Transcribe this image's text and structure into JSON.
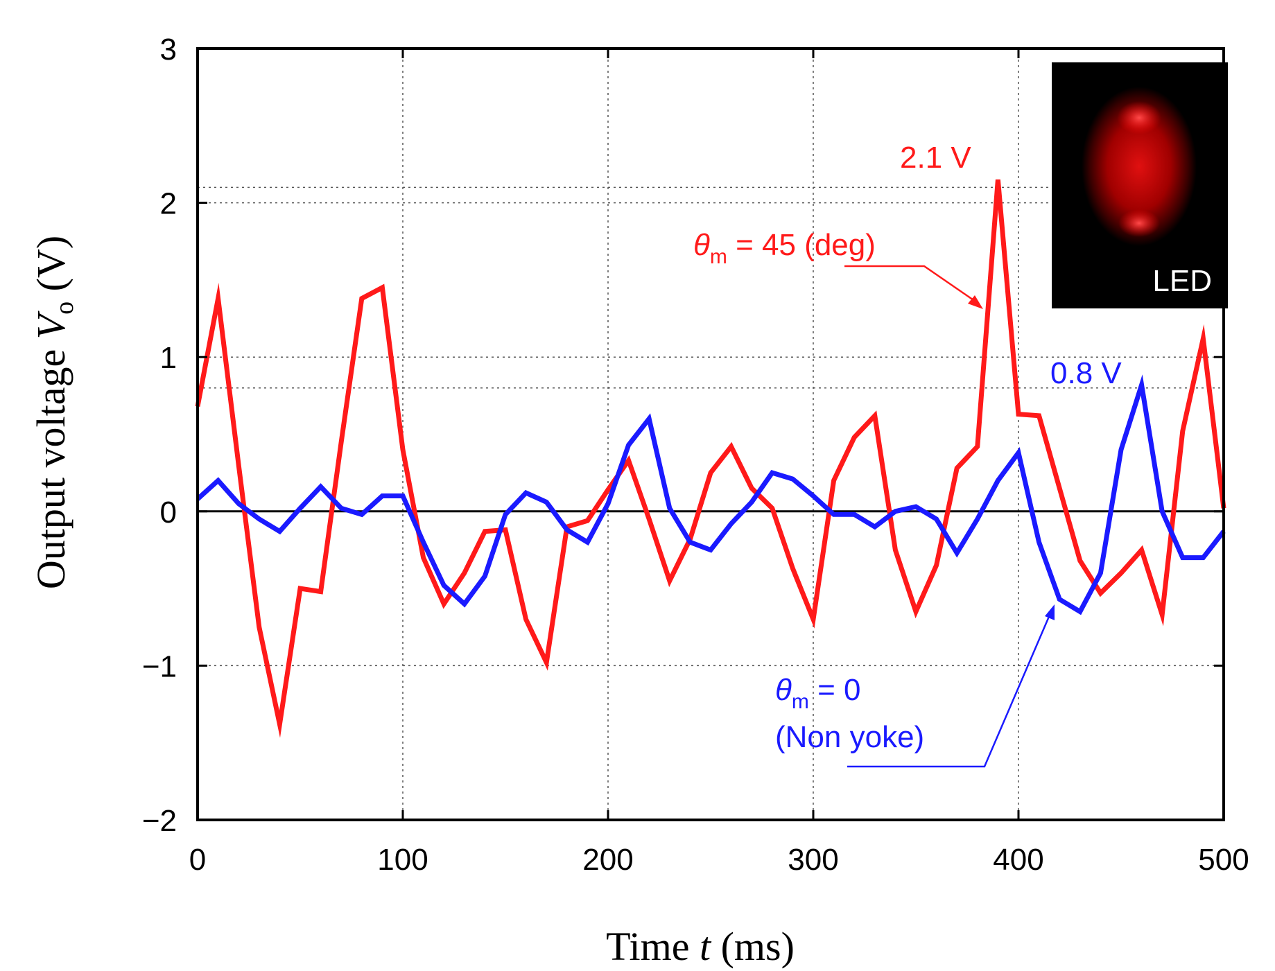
{
  "chart_data": {
    "type": "line",
    "xlabel": {
      "prefix": "Time ",
      "var": "t",
      "suffix": " (ms)"
    },
    "ylabel": {
      "prefix": "Output voltage ",
      "var": "V",
      "sub": "o",
      "suffix": " (V)"
    },
    "xlim": [
      0,
      500
    ],
    "ylim": [
      -2,
      3
    ],
    "xticks": [
      0,
      100,
      200,
      300,
      400,
      500
    ],
    "xtick_labels": [
      "0",
      "100",
      "200",
      "300",
      "400",
      "500"
    ],
    "yticks": [
      -2,
      -1,
      0,
      1,
      2,
      3
    ],
    "ytick_labels": [
      "−2",
      "−1",
      "0",
      "1",
      "2",
      "3"
    ],
    "grid": true,
    "reference_lines": [
      2.1,
      0.8
    ],
    "series": [
      {
        "name": "θm = 45 (deg)",
        "color": "#ff1a1a",
        "x": [
          0,
          10,
          20,
          30,
          40,
          50,
          60,
          70,
          80,
          90,
          100,
          110,
          120,
          130,
          140,
          150,
          160,
          170,
          180,
          190,
          200,
          210,
          220,
          230,
          240,
          250,
          260,
          270,
          280,
          290,
          300,
          310,
          320,
          330,
          340,
          350,
          360,
          370,
          380,
          390,
          400,
          410,
          420,
          430,
          440,
          450,
          460,
          470,
          480,
          490,
          500
        ],
        "y": [
          0.68,
          1.38,
          0.3,
          -0.75,
          -1.38,
          -0.5,
          -0.52,
          0.45,
          1.38,
          1.45,
          0.4,
          -0.3,
          -0.6,
          -0.4,
          -0.13,
          -0.12,
          -0.7,
          -0.98,
          -0.1,
          -0.06,
          0.14,
          0.33,
          -0.05,
          -0.45,
          -0.18,
          0.25,
          0.42,
          0.15,
          0.02,
          -0.37,
          -0.7,
          0.2,
          0.48,
          0.62,
          -0.25,
          -0.65,
          -0.35,
          0.28,
          0.42,
          2.15,
          0.63,
          0.62,
          0.15,
          -0.32,
          -0.53,
          -0.4,
          -0.25,
          -0.67,
          0.52,
          1.12,
          0.02
        ]
      },
      {
        "name": "θm = 0 (Non yoke)",
        "color": "#1a1aff",
        "x": [
          0,
          10,
          20,
          30,
          40,
          50,
          60,
          70,
          80,
          90,
          100,
          110,
          120,
          130,
          140,
          150,
          160,
          170,
          180,
          190,
          200,
          210,
          220,
          230,
          240,
          250,
          260,
          270,
          280,
          290,
          300,
          310,
          320,
          330,
          340,
          350,
          360,
          370,
          380,
          390,
          400,
          410,
          420,
          430,
          440,
          450,
          460,
          470,
          480,
          490,
          500
        ],
        "y": [
          0.08,
          0.2,
          0.05,
          -0.05,
          -0.13,
          0.02,
          0.16,
          0.02,
          -0.02,
          0.1,
          0.1,
          -0.2,
          -0.48,
          -0.6,
          -0.42,
          -0.02,
          0.12,
          0.06,
          -0.12,
          -0.2,
          0.05,
          0.43,
          0.6,
          0.02,
          -0.2,
          -0.25,
          -0.08,
          0.06,
          0.25,
          0.21,
          0.1,
          -0.02,
          -0.02,
          -0.1,
          0.0,
          0.03,
          -0.05,
          -0.27,
          -0.05,
          0.2,
          0.38,
          -0.2,
          -0.57,
          -0.65,
          -0.4,
          0.4,
          0.82,
          0.0,
          -0.3,
          -0.3,
          -0.13
        ]
      }
    ],
    "annotations": {
      "red_peak_label": "2.1 V",
      "blue_peak_label": "0.8 V",
      "red_series_label": {
        "theta": "θ",
        "sub": "m",
        "rest": " = 45 (deg)"
      },
      "blue_series_label": {
        "theta": "θ",
        "sub": "m",
        "rest": " = 0",
        "line2": "(Non yoke)"
      },
      "inset_label": "LED"
    }
  }
}
